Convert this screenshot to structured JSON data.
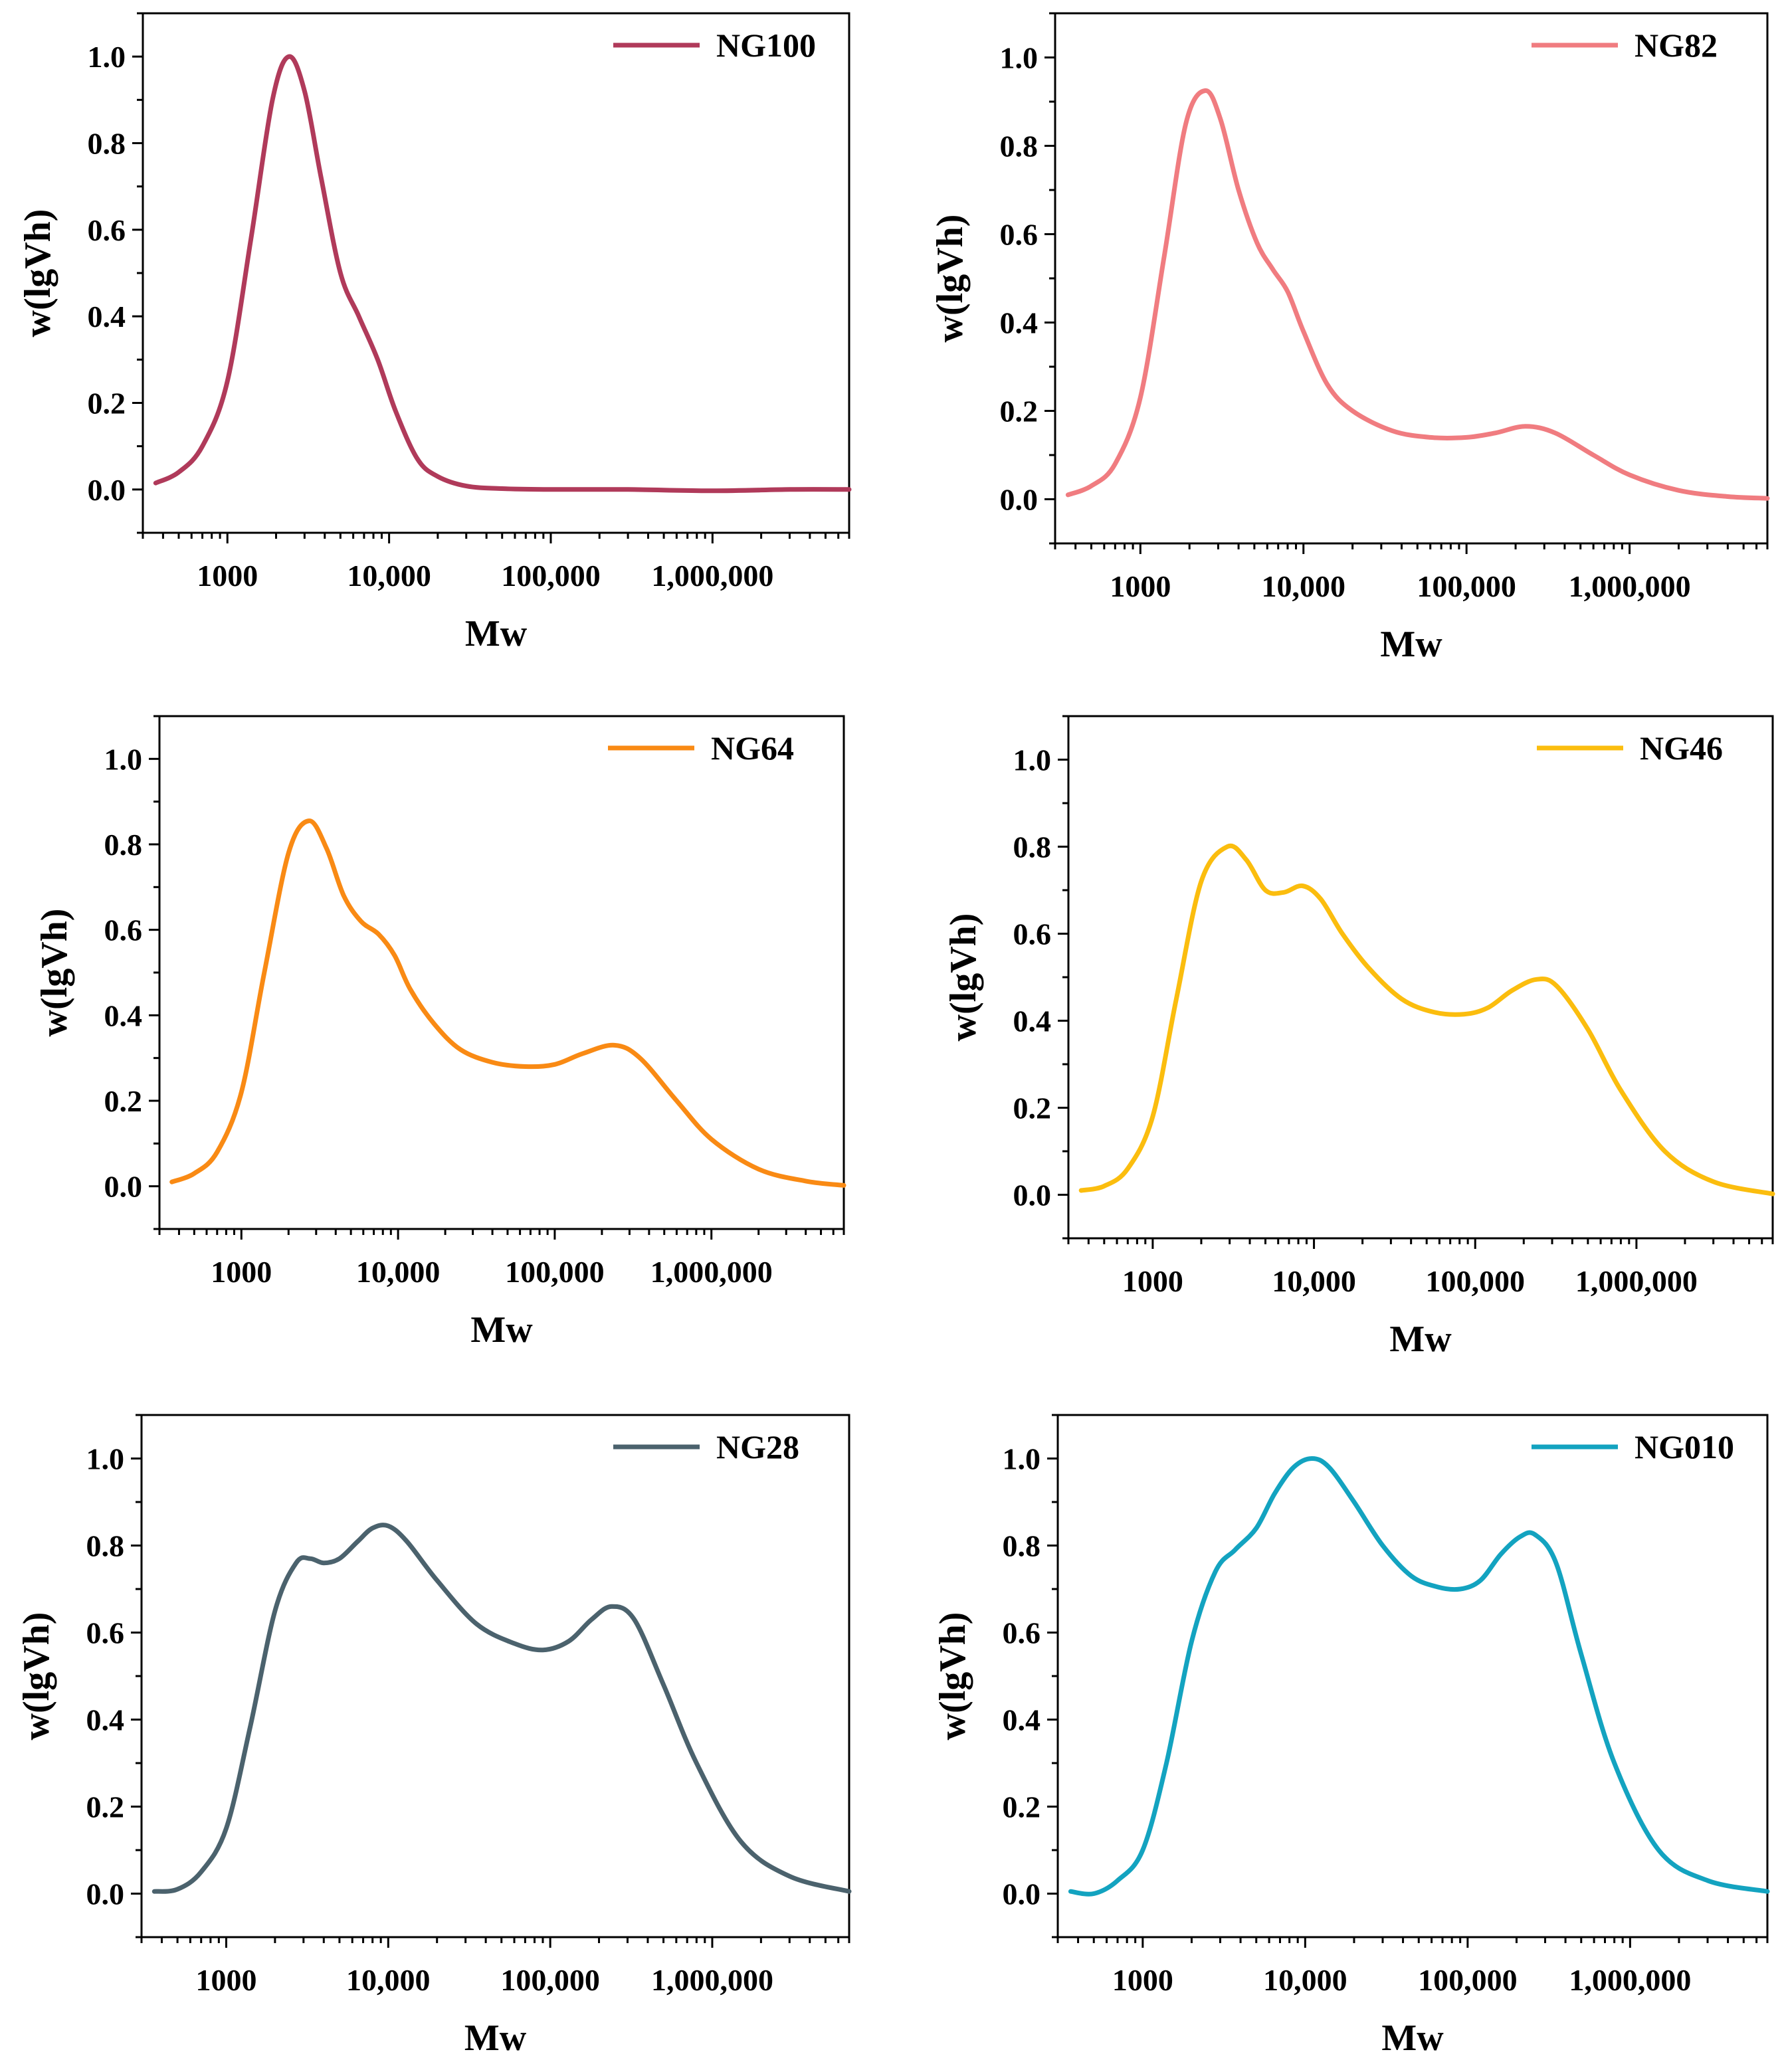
{
  "figure": {
    "description_free": true
  },
  "chart_data": [
    {
      "type": "line",
      "x_scale": "log",
      "xlabel": "Mw",
      "ylabel": "w(lgVh)",
      "xlim": [
        300,
        7000000
      ],
      "ylim": [
        -0.1,
        1.1
      ],
      "xticks": [
        1000,
        10000,
        100000,
        1000000
      ],
      "xtick_labels": [
        "1000",
        "10,000",
        "100,000",
        "1,000,000"
      ],
      "yticks": [
        0.0,
        0.2,
        0.4,
        0.6,
        0.8,
        1.0
      ],
      "ytick_labels": [
        "0.0",
        "0.2",
        "0.4",
        "0.6",
        "0.8",
        "1.0"
      ],
      "legend_position": "top-right",
      "series": [
        {
          "name": "NG100",
          "color": "#b03a5a",
          "x": [
            360,
            500,
            700,
            1000,
            1400,
            1900,
            2400,
            3000,
            3800,
            5000,
            6500,
            8500,
            11000,
            15000,
            20000,
            30000,
            50000,
            100000,
            300000,
            1000000,
            3000000,
            7000000
          ],
          "y": [
            0.015,
            0.04,
            0.1,
            0.25,
            0.58,
            0.9,
            1.0,
            0.92,
            0.72,
            0.5,
            0.4,
            0.3,
            0.18,
            0.07,
            0.03,
            0.008,
            0.002,
            0.0,
            0.0,
            -0.003,
            0.0,
            0.0
          ]
        }
      ]
    },
    {
      "type": "line",
      "x_scale": "log",
      "xlabel": "Mw",
      "ylabel": "w(lgVh)",
      "xlim": [
        300,
        7000000
      ],
      "ylim": [
        -0.1,
        1.1
      ],
      "xticks": [
        1000,
        10000,
        100000,
        1000000
      ],
      "xtick_labels": [
        "1000",
        "10,000",
        "100,000",
        "1,000,000"
      ],
      "yticks": [
        0.0,
        0.2,
        0.4,
        0.6,
        0.8,
        1.0
      ],
      "ytick_labels": [
        "0.0",
        "0.2",
        "0.4",
        "0.6",
        "0.8",
        "1.0"
      ],
      "legend_position": "top-right",
      "series": [
        {
          "name": "NG82",
          "color": "#f07c80",
          "x": [
            360,
            500,
            700,
            1000,
            1400,
            1900,
            2500,
            3100,
            4000,
            5200,
            6500,
            8000,
            10000,
            14000,
            20000,
            35000,
            60000,
            100000,
            150000,
            230000,
            350000,
            600000,
            1000000,
            2000000,
            4000000,
            7000000
          ],
          "y": [
            0.01,
            0.03,
            0.08,
            0.23,
            0.55,
            0.85,
            0.925,
            0.86,
            0.7,
            0.58,
            0.52,
            0.47,
            0.38,
            0.26,
            0.2,
            0.155,
            0.14,
            0.14,
            0.15,
            0.165,
            0.15,
            0.1,
            0.055,
            0.02,
            0.006,
            0.002
          ]
        }
      ]
    },
    {
      "type": "line",
      "x_scale": "log",
      "xlabel": "Mw",
      "ylabel": "w(lgVh)",
      "xlim": [
        300,
        7000000
      ],
      "ylim": [
        -0.1,
        1.1
      ],
      "xticks": [
        1000,
        10000,
        100000,
        1000000
      ],
      "xtick_labels": [
        "1000",
        "10,000",
        "100,000",
        "1,000,000"
      ],
      "yticks": [
        0.0,
        0.2,
        0.4,
        0.6,
        0.8,
        1.0
      ],
      "ytick_labels": [
        "0.0",
        "0.2",
        "0.4",
        "0.6",
        "0.8",
        "1.0"
      ],
      "legend_position": "top-right",
      "series": [
        {
          "name": "NG64",
          "color": "#f98a14",
          "x": [
            360,
            500,
            700,
            1000,
            1400,
            2000,
            2700,
            3500,
            4500,
            5800,
            7500,
            9500,
            12000,
            17000,
            25000,
            40000,
            65000,
            100000,
            150000,
            240000,
            350000,
            600000,
            1000000,
            2000000,
            4000000,
            7000000
          ],
          "y": [
            0.01,
            0.03,
            0.08,
            0.22,
            0.5,
            0.78,
            0.855,
            0.79,
            0.68,
            0.62,
            0.59,
            0.54,
            0.46,
            0.38,
            0.32,
            0.29,
            0.28,
            0.285,
            0.31,
            0.33,
            0.3,
            0.2,
            0.11,
            0.04,
            0.012,
            0.002
          ]
        }
      ]
    },
    {
      "type": "line",
      "x_scale": "log",
      "xlabel": "Mw",
      "ylabel": "w(lgVh)",
      "xlim": [
        300,
        7000000
      ],
      "ylim": [
        -0.1,
        1.1
      ],
      "xticks": [
        1000,
        10000,
        100000,
        1000000
      ],
      "xtick_labels": [
        "1000",
        "10,000",
        "100,000",
        "1,000,000"
      ],
      "yticks": [
        0.0,
        0.2,
        0.4,
        0.6,
        0.8,
        1.0
      ],
      "ytick_labels": [
        "0.0",
        "0.2",
        "0.4",
        "0.6",
        "0.8",
        "1.0"
      ],
      "legend_position": "top-right",
      "series": [
        {
          "name": "NG46",
          "color": "#fbbd0e",
          "x": [
            360,
            500,
            700,
            1000,
            1400,
            2000,
            2900,
            3800,
            5000,
            6500,
            8500,
            11000,
            15000,
            22000,
            35000,
            55000,
            85000,
            120000,
            170000,
            240000,
            320000,
            500000,
            800000,
            1500000,
            3000000,
            7000000
          ],
          "y": [
            0.01,
            0.02,
            0.06,
            0.18,
            0.45,
            0.72,
            0.8,
            0.77,
            0.7,
            0.695,
            0.71,
            0.68,
            0.6,
            0.52,
            0.45,
            0.42,
            0.415,
            0.43,
            0.47,
            0.495,
            0.48,
            0.38,
            0.24,
            0.1,
            0.03,
            0.002
          ]
        }
      ]
    },
    {
      "type": "line",
      "x_scale": "log",
      "xlabel": "Mw",
      "ylabel": "w(lgVh)",
      "xlim": [
        300,
        7000000
      ],
      "ylim": [
        -0.1,
        1.1
      ],
      "xticks": [
        1000,
        10000,
        100000,
        1000000
      ],
      "xtick_labels": [
        "1000",
        "10,000",
        "100,000",
        "1,000,000"
      ],
      "yticks": [
        0.0,
        0.2,
        0.4,
        0.6,
        0.8,
        1.0
      ],
      "ytick_labels": [
        "0.0",
        "0.2",
        "0.4",
        "0.6",
        "0.8",
        "1.0"
      ],
      "legend_position": "top-right",
      "series": [
        {
          "name": "NG28",
          "color": "#4b626d",
          "x": [
            360,
            500,
            700,
            1000,
            1400,
            2000,
            2700,
            3300,
            4000,
            5000,
            6500,
            8000,
            10000,
            13000,
            20000,
            35000,
            60000,
            90000,
            130000,
            180000,
            240000,
            330000,
            500000,
            800000,
            1500000,
            3000000,
            7000000
          ],
          "y": [
            0.005,
            0.01,
            0.05,
            0.15,
            0.38,
            0.65,
            0.76,
            0.77,
            0.76,
            0.77,
            0.81,
            0.84,
            0.845,
            0.81,
            0.72,
            0.62,
            0.575,
            0.56,
            0.58,
            0.63,
            0.66,
            0.63,
            0.48,
            0.3,
            0.12,
            0.04,
            0.005
          ]
        }
      ]
    },
    {
      "type": "line",
      "x_scale": "log",
      "xlabel": "Mw",
      "ylabel": "w(lgVh)",
      "xlim": [
        300,
        7000000
      ],
      "ylim": [
        -0.1,
        1.1
      ],
      "xticks": [
        1000,
        10000,
        100000,
        1000000
      ],
      "xtick_labels": [
        "1000",
        "10,000",
        "100,000",
        "1,000,000"
      ],
      "yticks": [
        0.0,
        0.2,
        0.4,
        0.6,
        0.8,
        1.0
      ],
      "ytick_labels": [
        "0.0",
        "0.2",
        "0.4",
        "0.6",
        "0.8",
        "1.0"
      ],
      "legend_position": "top-right",
      "series": [
        {
          "name": "NG010",
          "color": "#13a3c0",
          "x": [
            360,
            500,
            700,
            1000,
            1400,
            2000,
            2800,
            3700,
            5000,
            6500,
            8500,
            11000,
            14000,
            20000,
            30000,
            45000,
            65000,
            90000,
            120000,
            160000,
            210000,
            260000,
            350000,
            500000,
            800000,
            1500000,
            3000000,
            7000000
          ],
          "y": [
            0.005,
            0.0,
            0.03,
            0.1,
            0.3,
            0.58,
            0.74,
            0.79,
            0.84,
            0.92,
            0.98,
            1.0,
            0.98,
            0.9,
            0.8,
            0.73,
            0.705,
            0.7,
            0.72,
            0.78,
            0.82,
            0.825,
            0.76,
            0.55,
            0.3,
            0.1,
            0.03,
            0.005
          ]
        }
      ]
    }
  ]
}
